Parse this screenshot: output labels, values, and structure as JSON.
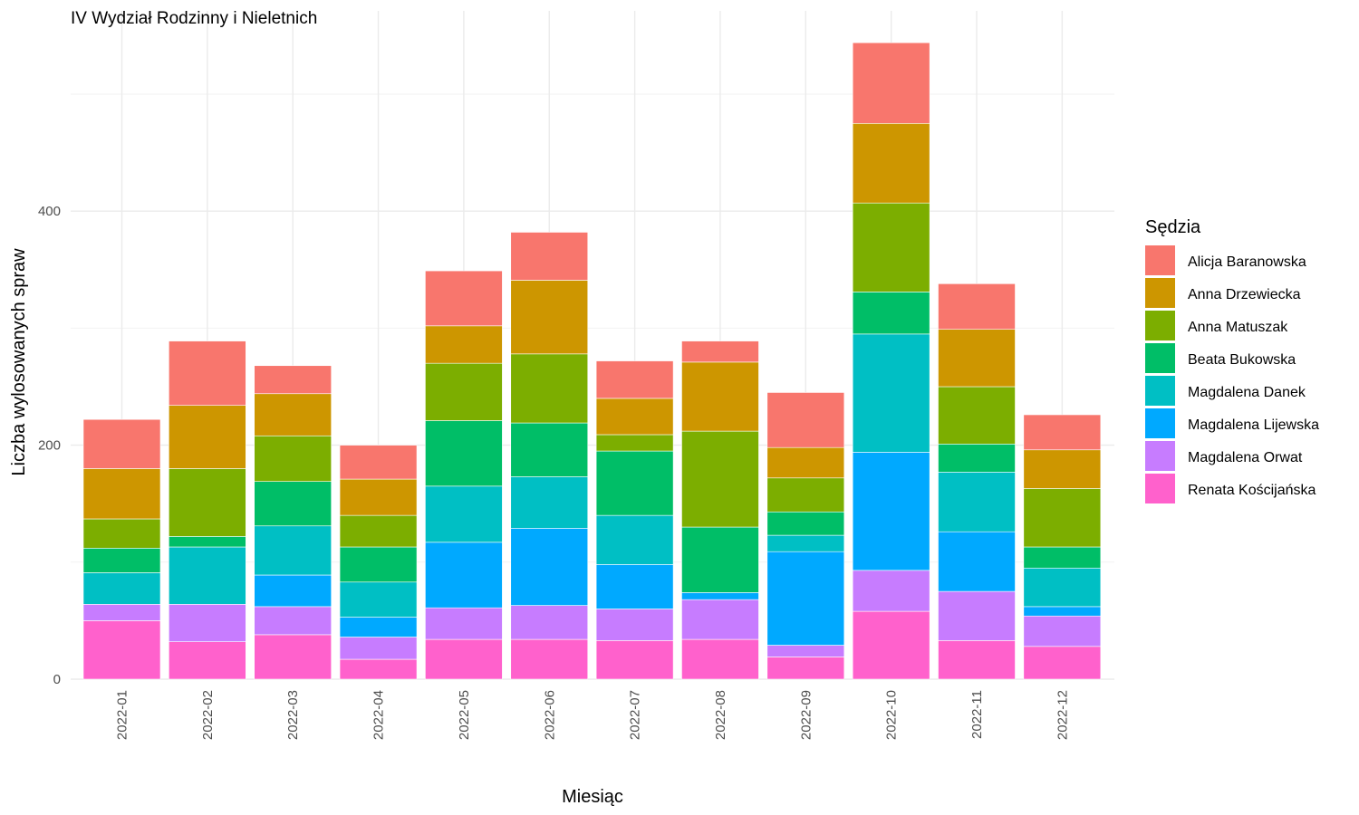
{
  "chart_data": {
    "type": "bar",
    "stacked": true,
    "title": "IV Wydział Rodzinny i Nieletnich",
    "xlabel": "Miesiąc",
    "ylabel": "Liczba wylosowanych spraw",
    "ylim": [
      0,
      570
    ],
    "yticks": [
      0,
      200,
      400
    ],
    "grid": true,
    "legend_title": "Sędzia",
    "legend_position": "right",
    "categories": [
      "2022-01",
      "2022-02",
      "2022-03",
      "2022-04",
      "2022-05",
      "2022-06",
      "2022-07",
      "2022-08",
      "2022-09",
      "2022-10",
      "2022-11",
      "2022-12"
    ],
    "series": [
      {
        "name": "Alicja Baranowska",
        "color": "#F8766D",
        "values": [
          42,
          55,
          24,
          29,
          47,
          41,
          32,
          18,
          47,
          69,
          39,
          30
        ]
      },
      {
        "name": "Anna Drzewiecka",
        "color": "#CD9600",
        "values": [
          43,
          54,
          36,
          31,
          32,
          63,
          31,
          59,
          26,
          68,
          49,
          33
        ]
      },
      {
        "name": "Anna Matuszak",
        "color": "#7CAE00",
        "values": [
          25,
          58,
          39,
          27,
          49,
          59,
          14,
          82,
          29,
          76,
          49,
          50
        ]
      },
      {
        "name": "Beata Bukowska",
        "color": "#00BE67",
        "values": [
          21,
          9,
          38,
          30,
          56,
          46,
          55,
          56,
          20,
          36,
          24,
          18
        ]
      },
      {
        "name": "Magdalena Danek",
        "color": "#00BFC4",
        "values": [
          27,
          49,
          42,
          30,
          48,
          44,
          42,
          0,
          14,
          101,
          51,
          33
        ]
      },
      {
        "name": "Magdalena Lijewska",
        "color": "#00A9FF",
        "values": [
          0,
          0,
          27,
          17,
          56,
          66,
          38,
          6,
          80,
          101,
          51,
          8
        ]
      },
      {
        "name": "Magdalena Orwat",
        "color": "#C77CFF",
        "values": [
          14,
          32,
          24,
          19,
          27,
          29,
          27,
          34,
          10,
          35,
          42,
          26
        ]
      },
      {
        "name": "Renata Kościjańska",
        "color": "#FF61CC",
        "values": [
          50,
          32,
          38,
          17,
          34,
          34,
          33,
          34,
          19,
          58,
          33,
          28
        ]
      }
    ]
  }
}
